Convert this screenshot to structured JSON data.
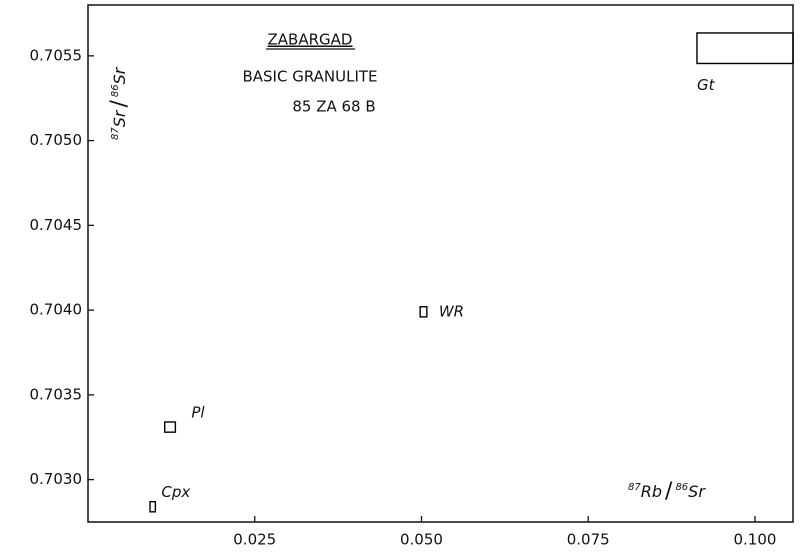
{
  "chart_data": {
    "type": "scatter",
    "title": "ZABARGAD",
    "subtitle": "BASIC GRANULITE",
    "sample": "85 ZA 68 B",
    "x_label": [
      "87",
      "Rb",
      "/",
      "86",
      "Sr"
    ],
    "y_label": [
      "87",
      "Sr",
      "/",
      "86",
      "Sr"
    ],
    "points": [
      {
        "label": "Cpx",
        "x": 0.0097,
        "y": 0.70284,
        "x_err": 0.0004,
        "y_err": 3e-05
      },
      {
        "label": "Pl",
        "x": 0.0123,
        "y": 0.70331,
        "x_err": 0.0008,
        "y_err": 3e-05
      },
      {
        "label": "WR",
        "x": 0.0503,
        "y": 0.70399,
        "x_err": 0.0005,
        "y_err": 3e-05
      },
      {
        "label": "Gt",
        "x": 0.0985,
        "y": 0.705545,
        "x_err": 0.0072,
        "y_err": 9e-05
      }
    ],
    "color": "#000000",
    "xlim": [
      0,
      0.1057
    ],
    "ylim": [
      0.70275,
      0.7058
    ],
    "xticks": [
      0.025,
      {
        "value": 0.05,
        "label": "0.050"
      },
      0.075,
      {
        "value": 0.1,
        "label": "0.100"
      }
    ],
    "yticks": [
      {
        "value": 0.703,
        "label": "0.7030"
      },
      0.7035,
      {
        "value": 0.704,
        "label": "0.7040"
      },
      0.7045,
      {
        "value": 0.705,
        "label": "0.7050"
      },
      0.7055
    ]
  }
}
